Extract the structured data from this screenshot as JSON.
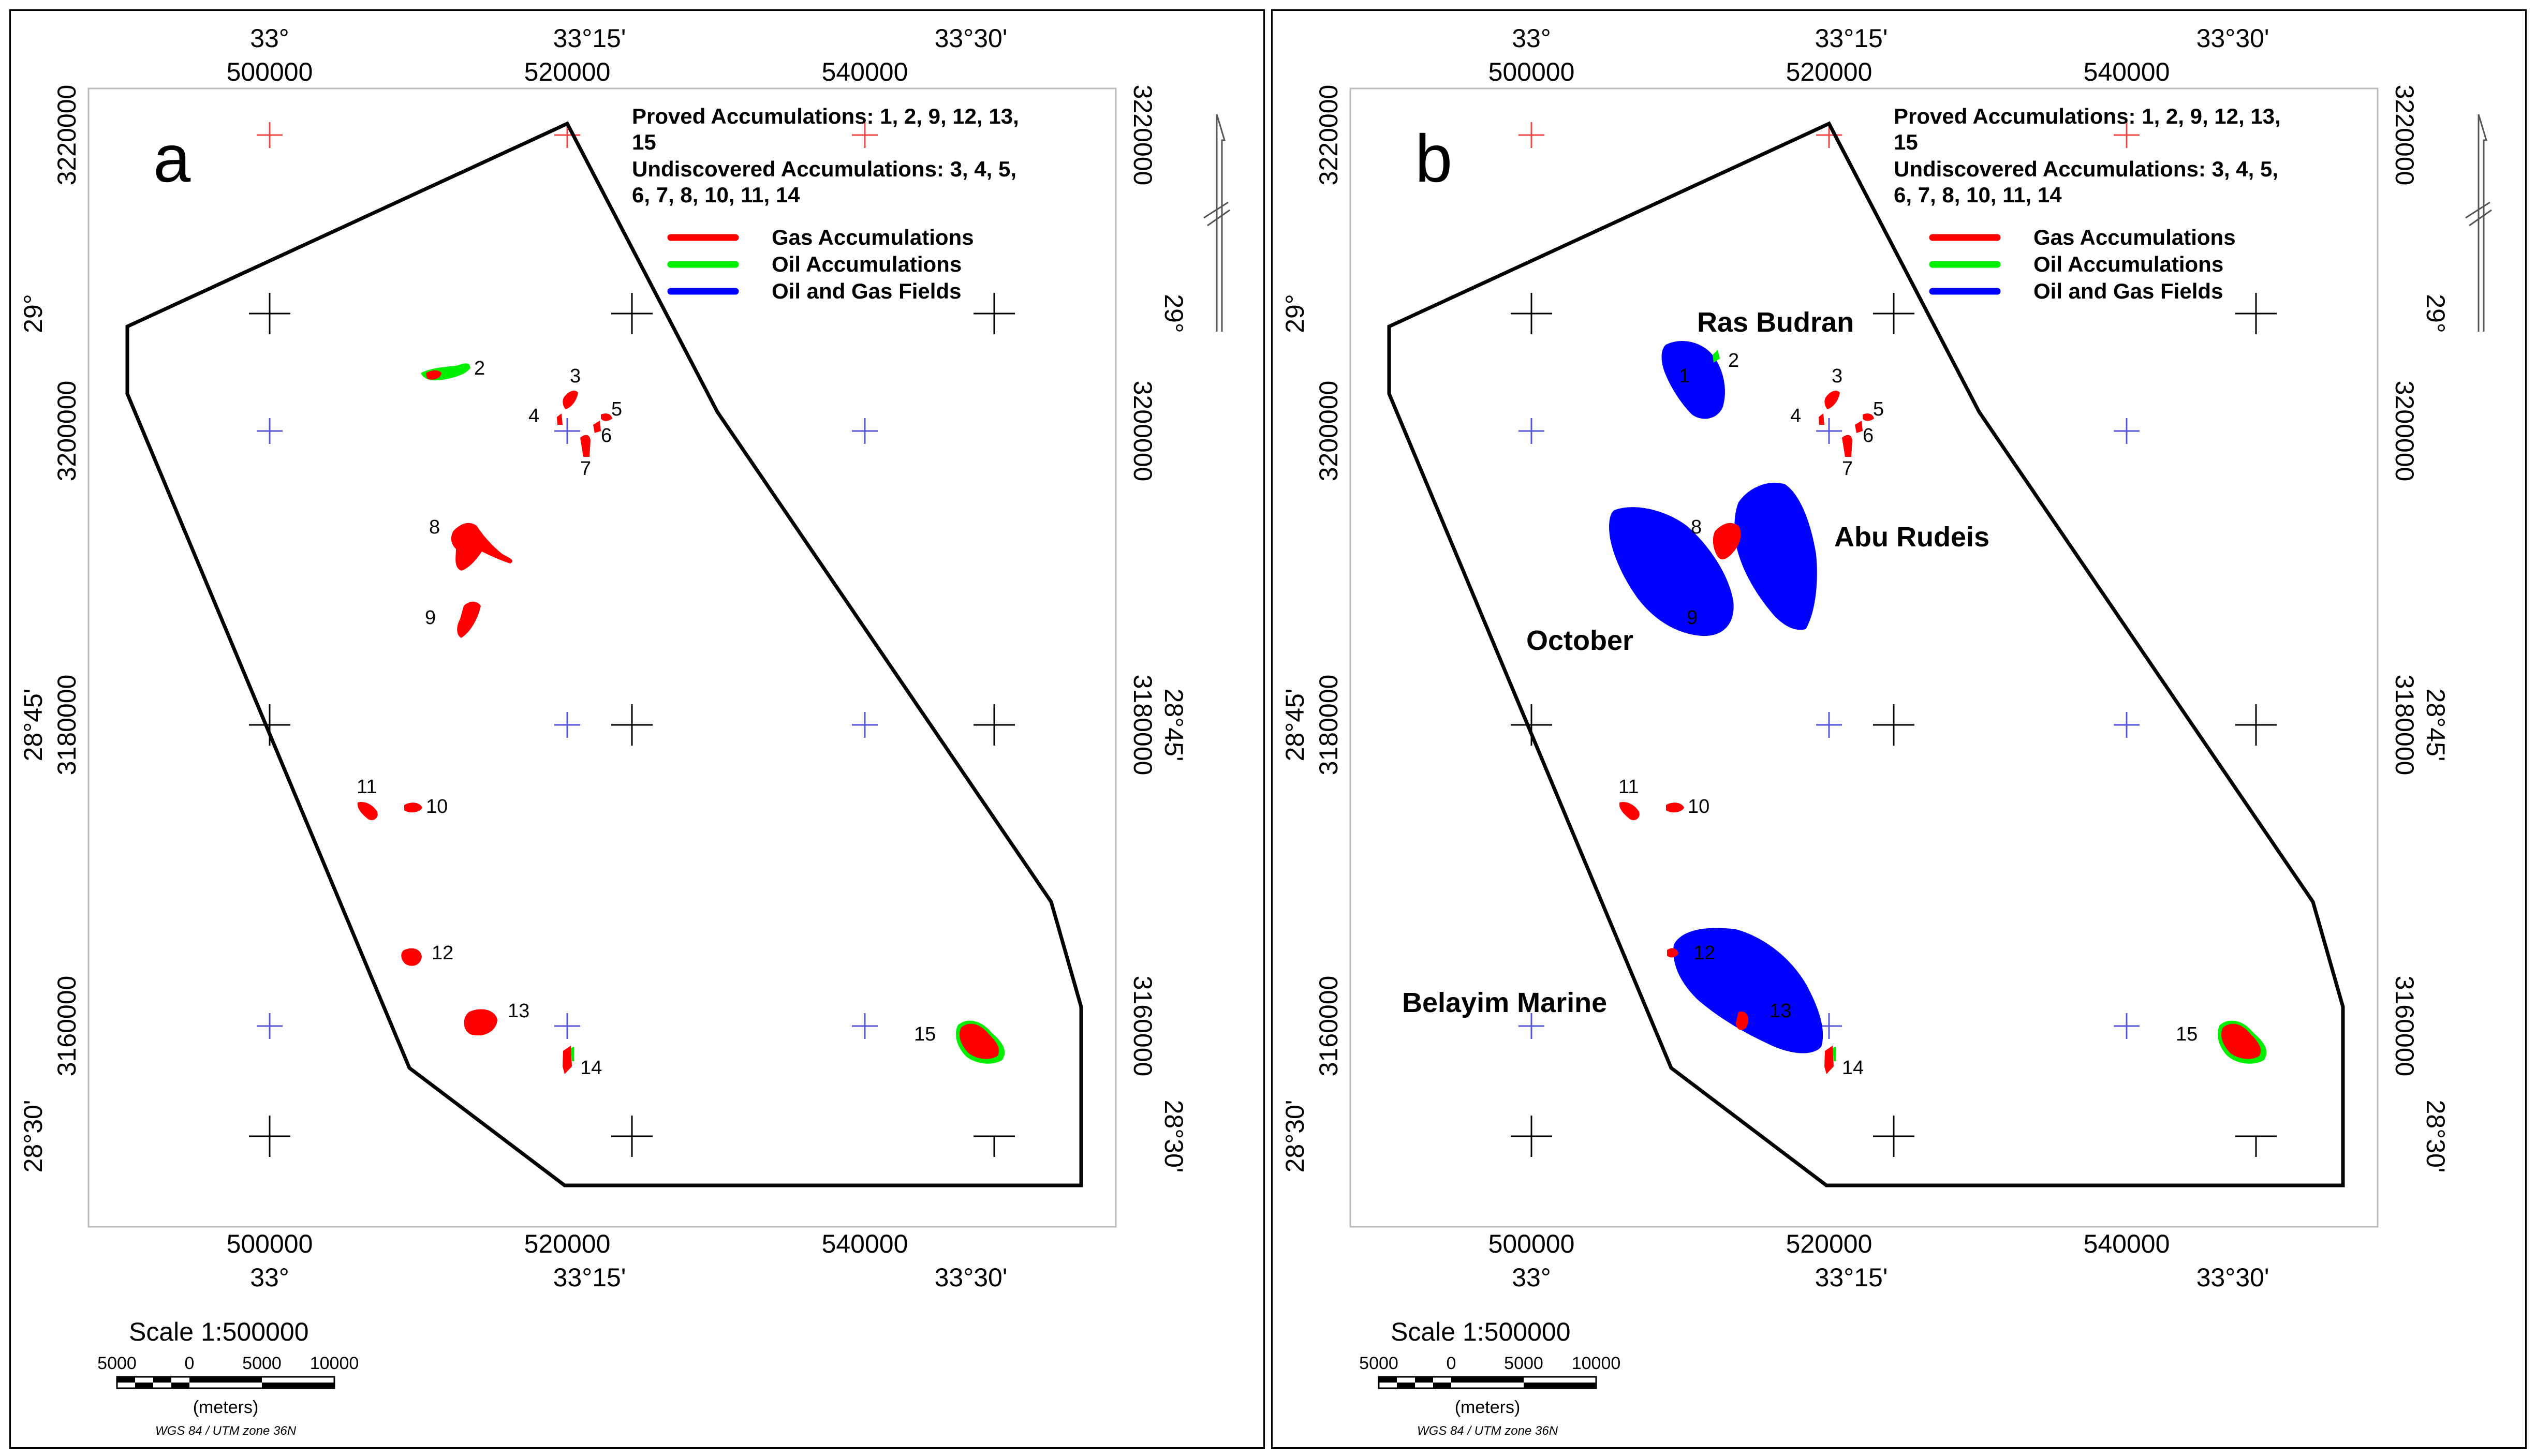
{
  "colors": {
    "gas": "#ff0000",
    "oil": "#00ee00",
    "field": "#0000ff",
    "boundary": "#000000",
    "grid_utm": "#5555dd",
    "grid_utm_top": "#ee4444",
    "grid_geo": "#000000"
  },
  "legend": {
    "proved": "Proved Accumulations: 1, 2, 9, 12, 13,",
    "proved_cont": "15",
    "undiscovered": "Undiscovered Accumulations: 3, 4, 5,",
    "undiscovered_cont": "6, 7, 8, 10, 11, 14",
    "gas": "Gas Accumulations",
    "oil": "Oil Accumulations",
    "fields": "Oil and Gas Fields"
  },
  "axes": {
    "top_deg": [
      "33°",
      "33°15'",
      "33°30'"
    ],
    "top_utm": [
      "500000",
      "520000",
      "540000"
    ],
    "bottom_utm": [
      "500000",
      "520000",
      "540000"
    ],
    "bottom_deg": [
      "33°",
      "33°15'",
      "33°30'"
    ],
    "left_deg": [
      "29°",
      "28°45'",
      "28°30'"
    ],
    "left_utm": [
      "3220000",
      "3200000",
      "3180000",
      "3160000"
    ],
    "right_deg": [
      "29°",
      "28°45'",
      "28°30'"
    ],
    "right_utm": [
      "3220000",
      "3200000",
      "3180000",
      "3160000"
    ]
  },
  "scale": {
    "title": "Scale 1:500000",
    "ticks": [
      "5000",
      "0",
      "5000",
      "10000"
    ],
    "unit": "(meters)",
    "projection": "WGS 84 / UTM zone 36N"
  },
  "panels": [
    {
      "letter": "a",
      "accumulation_labels": [
        "2",
        "3",
        "4",
        "5",
        "6",
        "7",
        "8",
        "9",
        "10",
        "11",
        "12",
        "13",
        "14",
        "15"
      ],
      "field_names": []
    },
    {
      "letter": "b",
      "accumulation_labels": [
        "1",
        "2",
        "3",
        "4",
        "5",
        "6",
        "7",
        "8",
        "9",
        "10",
        "11",
        "12",
        "13",
        "14",
        "15"
      ],
      "field_names": [
        "Ras Budran",
        "Abu Rudeis",
        "October",
        "Belayim Marine"
      ]
    }
  ]
}
